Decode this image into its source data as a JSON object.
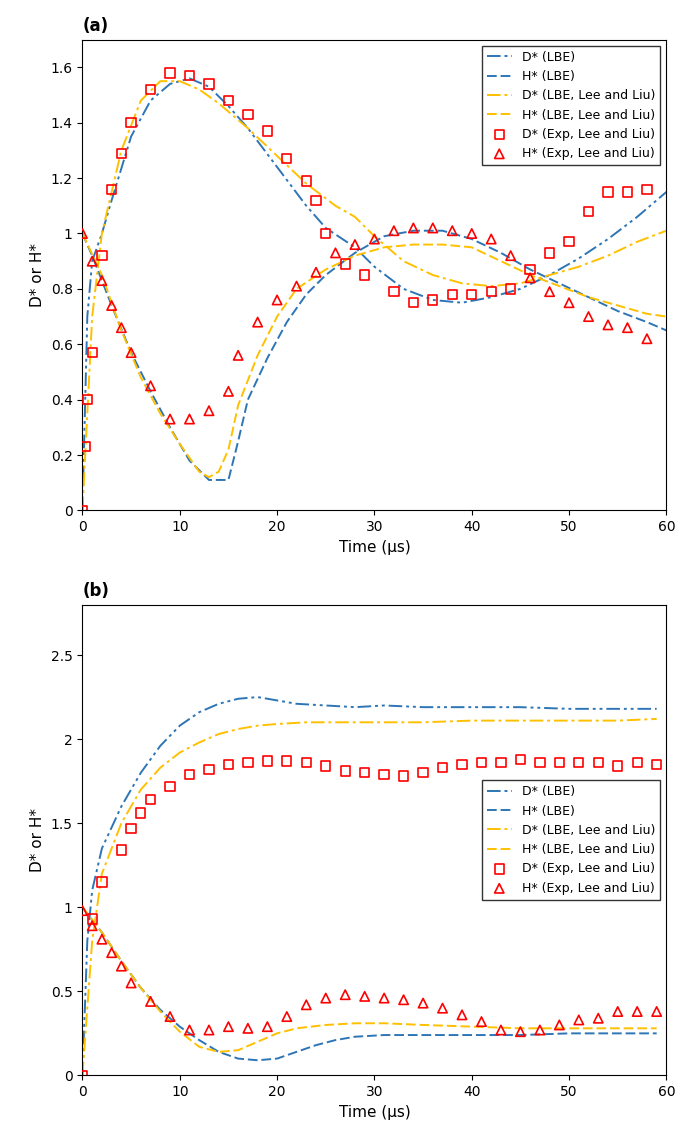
{
  "chart_data": [
    {
      "type": "line",
      "title": "(a)",
      "x_label": "Time (μs)",
      "y_label": "D* or H*",
      "xlim": [
        0,
        60
      ],
      "xticks": [
        0,
        10,
        20,
        30,
        40,
        50,
        60
      ],
      "ylim": [
        0,
        1.7
      ],
      "yticks": [
        0,
        0.2,
        0.4,
        0.6,
        0.8,
        1,
        1.2,
        1.4,
        1.6
      ],
      "legend": "upper right",
      "grid": false,
      "series": [
        {
          "name": "D* (LBE)",
          "type": "line",
          "color": "#2e75b6",
          "line_style": "dashdotdot",
          "x": [
            0,
            0.5,
            1,
            2,
            3,
            5,
            7,
            9,
            11,
            13,
            15,
            17,
            20,
            23,
            25,
            28,
            30,
            33,
            36,
            39,
            42,
            45,
            48,
            51,
            54,
            57,
            60
          ],
          "values": [
            0,
            0.7,
            0.9,
            1.0,
            1.12,
            1.35,
            1.48,
            1.54,
            1.56,
            1.53,
            1.46,
            1.38,
            1.24,
            1.1,
            1.02,
            0.95,
            0.88,
            0.8,
            0.76,
            0.75,
            0.77,
            0.8,
            0.85,
            0.91,
            0.98,
            1.06,
            1.15
          ]
        },
        {
          "name": "H* (LBE)",
          "type": "line",
          "color": "#2e75b6",
          "line_style": "dashed",
          "x": [
            0,
            1,
            3,
            5,
            7,
            9,
            11,
            13,
            15,
            16,
            17,
            19,
            21,
            23,
            25,
            28,
            31,
            34,
            37,
            40,
            43,
            46,
            49,
            52,
            55,
            58,
            60
          ],
          "values": [
            1.0,
            0.92,
            0.74,
            0.57,
            0.43,
            0.3,
            0.18,
            0.11,
            0.11,
            0.25,
            0.4,
            0.55,
            0.68,
            0.78,
            0.85,
            0.93,
            0.99,
            1.01,
            1.01,
            0.98,
            0.93,
            0.87,
            0.82,
            0.77,
            0.72,
            0.68,
            0.65
          ]
        },
        {
          "name": "D* (LBE, Lee and Liu)",
          "type": "line",
          "color": "#ffc000",
          "line_style": "dashdot",
          "x": [
            0,
            1,
            2,
            4,
            6,
            8,
            10,
            12,
            14,
            17,
            20,
            23,
            26,
            28,
            30,
            33,
            36,
            39,
            42,
            45,
            48,
            51,
            54,
            57,
            60
          ],
          "values": [
            0,
            0.7,
            1.0,
            1.3,
            1.48,
            1.55,
            1.55,
            1.52,
            1.47,
            1.38,
            1.28,
            1.18,
            1.1,
            1.06,
            0.99,
            0.9,
            0.85,
            0.82,
            0.81,
            0.82,
            0.85,
            0.88,
            0.92,
            0.97,
            1.01
          ]
        },
        {
          "name": "H* (LBE, Lee and Liu)",
          "type": "line",
          "color": "#ffc000",
          "line_style": "dashed",
          "x": [
            0,
            2,
            4,
            6,
            8,
            10,
            12,
            13,
            14,
            15,
            16,
            18,
            20,
            22,
            25,
            28,
            31,
            34,
            37,
            40,
            43,
            46,
            49,
            52,
            55,
            58,
            60
          ],
          "values": [
            1.0,
            0.85,
            0.65,
            0.48,
            0.35,
            0.24,
            0.14,
            0.12,
            0.14,
            0.22,
            0.38,
            0.56,
            0.7,
            0.8,
            0.87,
            0.92,
            0.95,
            0.96,
            0.96,
            0.95,
            0.9,
            0.85,
            0.81,
            0.77,
            0.74,
            0.71,
            0.7
          ]
        },
        {
          "name": "D* (Exp, Lee and Liu)",
          "type": "scatter",
          "color": "#ff0000",
          "marker": "square",
          "x": [
            0,
            0.3,
            0.5,
            1,
            2,
            3,
            4,
            5,
            7,
            9,
            11,
            13,
            15,
            17,
            19,
            21,
            23,
            24,
            25,
            27,
            29,
            32,
            34,
            36,
            38,
            40,
            42,
            44,
            46,
            48,
            50,
            52,
            54,
            56,
            58
          ],
          "values": [
            0,
            0.23,
            0.4,
            0.57,
            0.92,
            1.16,
            1.29,
            1.4,
            1.52,
            1.58,
            1.57,
            1.54,
            1.48,
            1.43,
            1.37,
            1.27,
            1.19,
            1.12,
            1.0,
            0.89,
            0.85,
            0.79,
            0.75,
            0.76,
            0.78,
            0.78,
            0.79,
            0.8,
            0.87,
            0.93,
            0.97,
            1.08,
            1.15,
            1.15,
            1.16
          ]
        },
        {
          "name": "H* (Exp, Lee and Liu)",
          "type": "scatter",
          "color": "#ff0000",
          "marker": "triangle",
          "x": [
            0,
            1,
            2,
            3,
            4,
            5,
            7,
            9,
            11,
            13,
            15,
            16,
            18,
            20,
            22,
            24,
            26,
            28,
            30,
            32,
            34,
            36,
            38,
            40,
            42,
            44,
            46,
            48,
            50,
            52,
            54,
            56,
            58
          ],
          "values": [
            1.0,
            0.9,
            0.83,
            0.74,
            0.66,
            0.57,
            0.45,
            0.33,
            0.33,
            0.36,
            0.43,
            0.56,
            0.68,
            0.76,
            0.81,
            0.86,
            0.93,
            0.96,
            0.98,
            1.01,
            1.02,
            1.02,
            1.01,
            1.0,
            0.98,
            0.92,
            0.84,
            0.79,
            0.75,
            0.7,
            0.67,
            0.66,
            0.62
          ]
        }
      ]
    },
    {
      "type": "line",
      "title": "(b)",
      "x_label": "Time (μs)",
      "y_label": "D* or H*",
      "xlim": [
        0,
        60
      ],
      "xticks": [
        0,
        10,
        20,
        30,
        40,
        50,
        60
      ],
      "ylim": [
        0,
        2.8
      ],
      "yticks": [
        0,
        0.5,
        1,
        1.5,
        2,
        2.5
      ],
      "legend": "center right",
      "grid": false,
      "series": [
        {
          "name": "D* (LBE)",
          "type": "line",
          "color": "#2e75b6",
          "line_style": "dashdotdot",
          "x": [
            0,
            0.5,
            1,
            2,
            4,
            6,
            8,
            10,
            12,
            14,
            16,
            18,
            20,
            22,
            25,
            28,
            31,
            35,
            40,
            45,
            50,
            55,
            59
          ],
          "values": [
            0,
            0.8,
            1.1,
            1.35,
            1.6,
            1.8,
            1.96,
            2.08,
            2.16,
            2.21,
            2.24,
            2.25,
            2.23,
            2.21,
            2.2,
            2.19,
            2.2,
            2.19,
            2.19,
            2.19,
            2.18,
            2.18,
            2.18
          ]
        },
        {
          "name": "H* (LBE)",
          "type": "line",
          "color": "#2e75b6",
          "line_style": "dashed",
          "x": [
            0,
            2,
            4,
            6,
            8,
            10,
            12,
            14,
            16,
            18,
            20,
            22,
            24,
            26,
            28,
            31,
            35,
            40,
            45,
            50,
            55,
            59
          ],
          "values": [
            1.0,
            0.85,
            0.68,
            0.52,
            0.39,
            0.29,
            0.21,
            0.14,
            0.1,
            0.09,
            0.1,
            0.14,
            0.18,
            0.21,
            0.23,
            0.24,
            0.24,
            0.24,
            0.24,
            0.25,
            0.25,
            0.25
          ]
        },
        {
          "name": "D* (LBE, Lee and Liu)",
          "type": "line",
          "color": "#ffc000",
          "line_style": "dashdot",
          "x": [
            0,
            1,
            2,
            4,
            6,
            8,
            10,
            12,
            14,
            16,
            18,
            20,
            23,
            26,
            30,
            35,
            40,
            45,
            50,
            55,
            59
          ],
          "values": [
            0,
            0.8,
            1.2,
            1.5,
            1.7,
            1.83,
            1.92,
            1.98,
            2.03,
            2.06,
            2.08,
            2.09,
            2.1,
            2.1,
            2.1,
            2.1,
            2.11,
            2.11,
            2.11,
            2.11,
            2.12
          ]
        },
        {
          "name": "H* (LBE, Lee and Liu)",
          "type": "line",
          "color": "#ffc000",
          "line_style": "dashed",
          "x": [
            0,
            2,
            4,
            6,
            8,
            10,
            12,
            14,
            16,
            18,
            20,
            22,
            25,
            28,
            31,
            35,
            40,
            45,
            50,
            55,
            59
          ],
          "values": [
            1.0,
            0.85,
            0.68,
            0.52,
            0.38,
            0.26,
            0.17,
            0.14,
            0.15,
            0.2,
            0.25,
            0.28,
            0.3,
            0.31,
            0.31,
            0.3,
            0.29,
            0.28,
            0.28,
            0.28,
            0.28
          ]
        },
        {
          "name": "D* (Exp, Lee and Liu)",
          "type": "scatter",
          "color": "#ff0000",
          "marker": "square",
          "x": [
            0,
            1,
            2,
            4,
            5,
            6,
            7,
            9,
            11,
            13,
            15,
            17,
            19,
            21,
            23,
            25,
            27,
            29,
            31,
            33,
            35,
            37,
            39,
            41,
            43,
            45,
            47,
            49,
            51,
            53,
            55,
            57,
            59
          ],
          "values": [
            0,
            0.93,
            1.15,
            1.34,
            1.47,
            1.56,
            1.64,
            1.72,
            1.79,
            1.82,
            1.85,
            1.86,
            1.87,
            1.87,
            1.86,
            1.84,
            1.81,
            1.8,
            1.79,
            1.78,
            1.8,
            1.83,
            1.85,
            1.86,
            1.86,
            1.88,
            1.86,
            1.86,
            1.86,
            1.86,
            1.84,
            1.86,
            1.85
          ]
        },
        {
          "name": "H* (Exp, Lee and Liu)",
          "type": "scatter",
          "color": "#ff0000",
          "marker": "triangle",
          "x": [
            0,
            1,
            2,
            3,
            4,
            5,
            7,
            9,
            11,
            13,
            15,
            17,
            19,
            21,
            23,
            25,
            27,
            29,
            31,
            33,
            35,
            37,
            39,
            41,
            43,
            45,
            47,
            49,
            51,
            53,
            55,
            57,
            59
          ],
          "values": [
            0.98,
            0.89,
            0.81,
            0.73,
            0.65,
            0.55,
            0.44,
            0.35,
            0.27,
            0.27,
            0.29,
            0.28,
            0.29,
            0.35,
            0.42,
            0.46,
            0.48,
            0.47,
            0.46,
            0.45,
            0.43,
            0.4,
            0.36,
            0.32,
            0.27,
            0.26,
            0.27,
            0.3,
            0.33,
            0.34,
            0.38,
            0.38,
            0.38
          ]
        }
      ]
    }
  ]
}
